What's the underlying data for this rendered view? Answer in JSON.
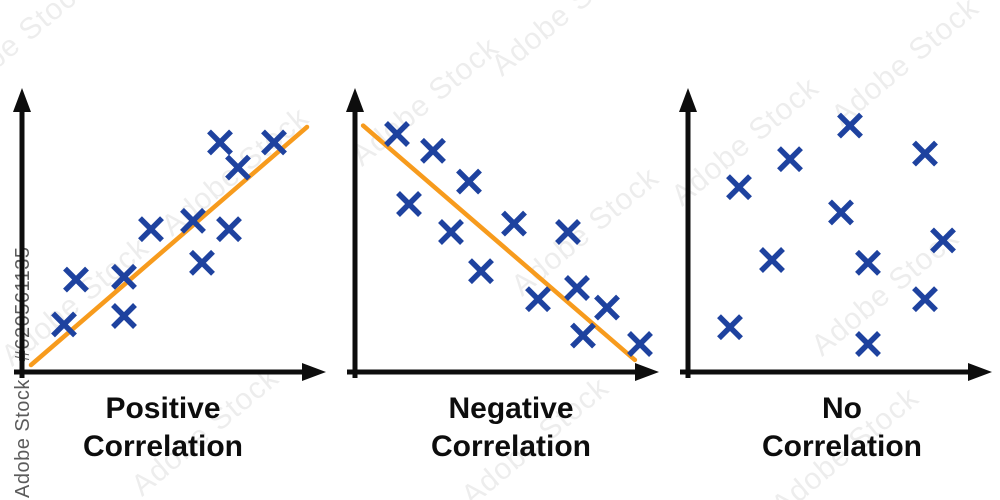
{
  "watermark": {
    "diagonal_text": "Adobe Stock",
    "side_text": "Adobe Stock | #620561135"
  },
  "colors": {
    "marker_blue": "#1e429f",
    "trend_orange": "#f79b1d",
    "axis_black": "#0d0d0d",
    "caption_black": "#0d0d0d"
  },
  "chart_data": [
    {
      "type": "scatter",
      "title": "Positive Correlation",
      "title_lines": [
        "Positive",
        "Correlation"
      ],
      "marker": "x",
      "xlabel": "",
      "ylabel": "",
      "xlim": [
        0,
        10
      ],
      "ylim": [
        0,
        10
      ],
      "ticks": "none",
      "grid": false,
      "axis_arrows": true,
      "points": [
        [
          1.4,
          1.7
        ],
        [
          1.8,
          3.3
        ],
        [
          3.4,
          3.4
        ],
        [
          3.4,
          2.0
        ],
        [
          4.3,
          5.1
        ],
        [
          5.7,
          5.4
        ],
        [
          6.9,
          5.1
        ],
        [
          6.0,
          3.9
        ],
        [
          6.6,
          8.2
        ],
        [
          7.2,
          7.3
        ],
        [
          8.4,
          8.2
        ]
      ],
      "trendline": {
        "x1": 0.3,
        "y1": 0.25,
        "x2": 9.5,
        "y2": 8.75
      }
    },
    {
      "type": "scatter",
      "title": "Negative Correlation",
      "title_lines": [
        "Negative",
        "Correlation"
      ],
      "marker": "x",
      "xlabel": "",
      "ylabel": "",
      "xlim": [
        0,
        10
      ],
      "ylim": [
        0,
        10
      ],
      "ticks": "none",
      "grid": false,
      "axis_arrows": true,
      "points": [
        [
          1.4,
          8.5
        ],
        [
          2.6,
          7.9
        ],
        [
          3.8,
          6.8
        ],
        [
          1.8,
          6.0
        ],
        [
          3.2,
          5.0
        ],
        [
          5.3,
          5.3
        ],
        [
          7.1,
          5.0
        ],
        [
          4.2,
          3.6
        ],
        [
          6.1,
          2.6
        ],
        [
          7.4,
          3.0
        ],
        [
          8.4,
          2.3
        ],
        [
          7.6,
          1.3
        ],
        [
          9.5,
          1.0
        ]
      ],
      "trendline": {
        "x1": 0.27,
        "y1": 8.8,
        "x2": 9.33,
        "y2": 0.43
      }
    },
    {
      "type": "scatter",
      "title": "No Correlation",
      "title_lines": [
        "No",
        "Correlation"
      ],
      "marker": "x",
      "xlabel": "",
      "ylabel": "",
      "xlim": [
        0,
        10
      ],
      "ylim": [
        0,
        10
      ],
      "ticks": "none",
      "grid": false,
      "axis_arrows": true,
      "points": [
        [
          5.4,
          8.8
        ],
        [
          3.4,
          7.6
        ],
        [
          7.9,
          7.8
        ],
        [
          1.7,
          6.6
        ],
        [
          5.1,
          5.7
        ],
        [
          8.5,
          4.7
        ],
        [
          2.8,
          4.0
        ],
        [
          6.0,
          3.9
        ],
        [
          7.9,
          2.6
        ],
        [
          1.4,
          1.6
        ],
        [
          6.0,
          1.0
        ]
      ],
      "trendline": null
    }
  ]
}
